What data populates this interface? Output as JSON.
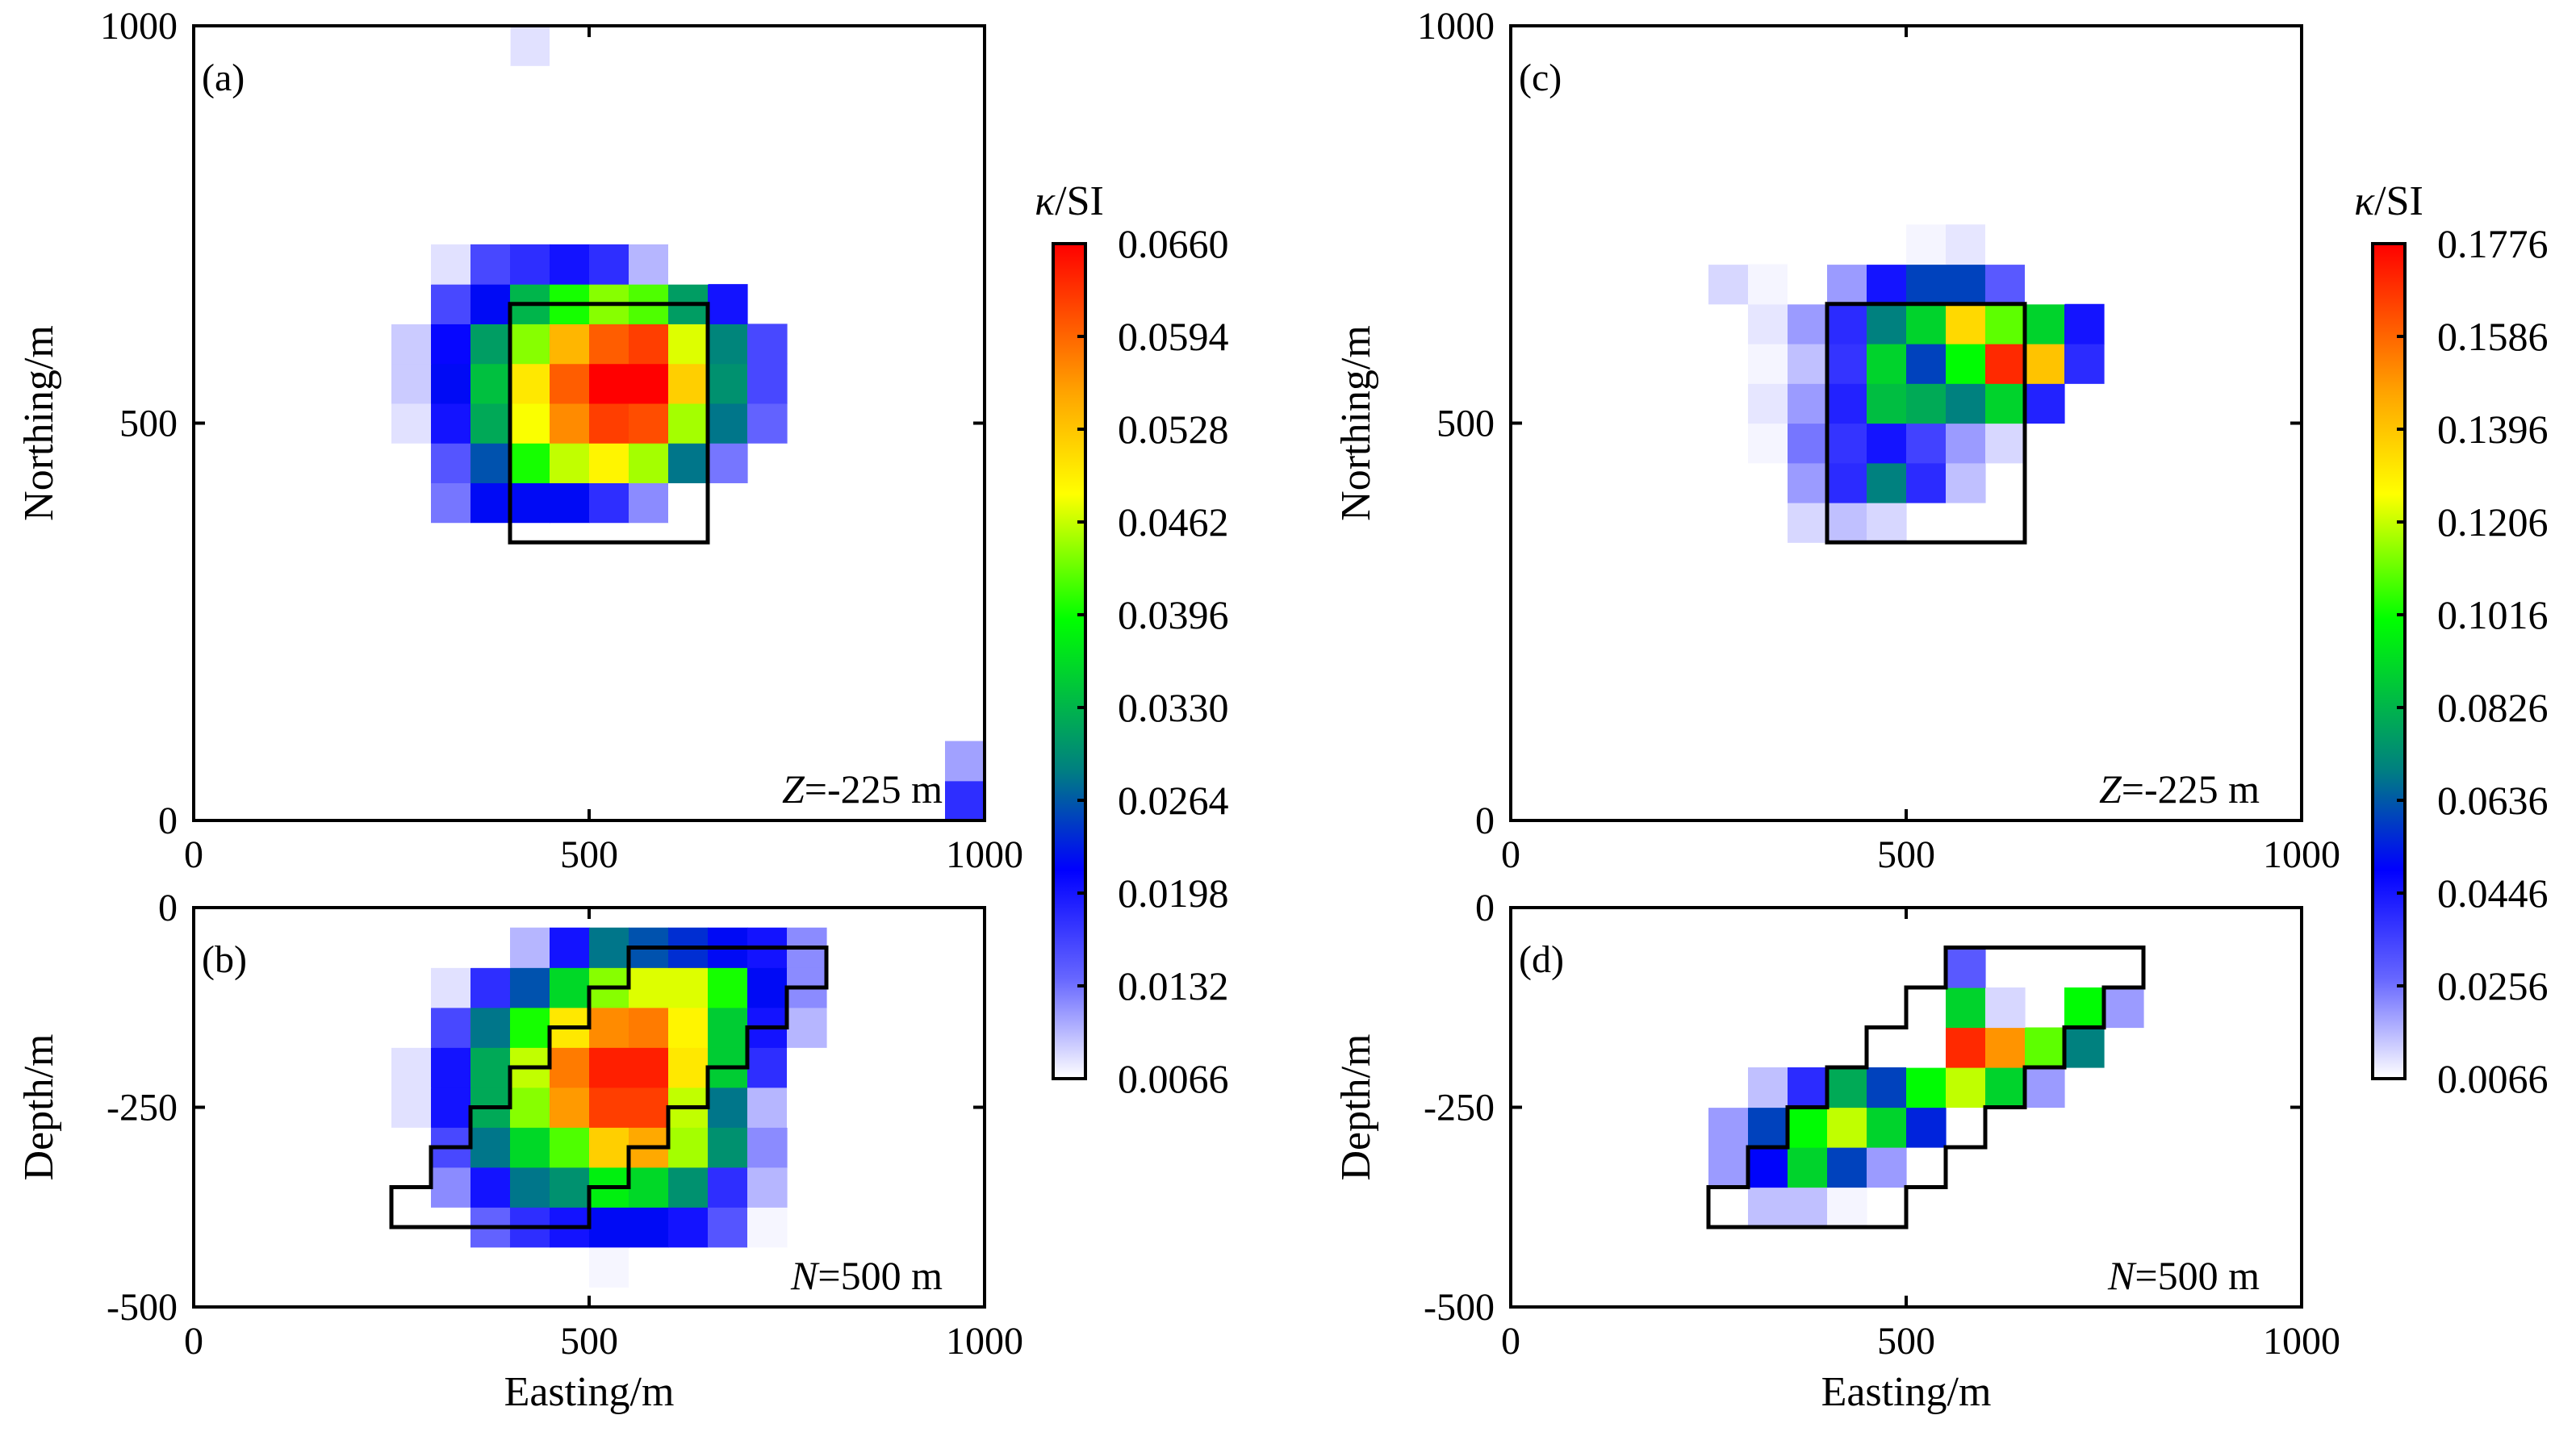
{
  "colors": {
    "colormap": [
      "#ffffff",
      "#6666ff",
      "#0000ff",
      "#008080",
      "#00ff00",
      "#ffff00",
      "#ffa500",
      "#ff0000"
    ],
    "colormap_stops": [
      0,
      0.12,
      0.25,
      0.37,
      0.55,
      0.7,
      0.82,
      1.0
    ],
    "outline": "#000000"
  },
  "chart_data": [
    {
      "id": "a",
      "type": "heatmap",
      "panel_label": "(a)",
      "note": "Z=-225 m",
      "note_italic": "Z",
      "note_rest": "=-225 m",
      "xlabel": "",
      "ylabel": "Northing/m",
      "xlim": [
        0,
        1000
      ],
      "ylim": [
        0,
        1000
      ],
      "xticks": [
        "0",
        "500",
        "1000"
      ],
      "yticks": [
        "0",
        "500",
        "1000"
      ],
      "x0": 250,
      "y0": 375,
      "dx": 50,
      "dy": 50,
      "value_range": [
        0.0066,
        0.066
      ],
      "grid": [
        [
          0.003,
          0.013,
          0.022,
          0.022,
          0.022,
          0.018,
          0.012,
          0.003
        ],
        [
          0.005,
          0.015,
          0.026,
          0.04,
          0.046,
          0.049,
          0.045,
          0.028,
          0.013
        ],
        [
          0.008,
          0.02,
          0.032,
          0.048,
          0.057,
          0.062,
          0.061,
          0.045,
          0.028,
          0.014
        ],
        [
          0.009,
          0.022,
          0.034,
          0.05,
          0.06,
          0.066,
          0.066,
          0.052,
          0.03,
          0.016
        ],
        [
          0.009,
          0.021,
          0.031,
          0.044,
          0.054,
          0.06,
          0.062,
          0.047,
          0.029,
          0.016
        ],
        [
          0.006,
          0.016,
          0.022,
          0.033,
          0.04,
          0.044,
          0.042,
          0.031,
          0.02
        ],
        [
          0.002,
          0.008,
          0.016,
          0.018,
          0.02,
          0.018,
          0.01,
          0.004
        ]
      ],
      "outline": [
        [
          400,
          350
        ],
        [
          650,
          350
        ],
        [
          650,
          650
        ],
        [
          400,
          650
        ]
      ],
      "extra_cells": [
        {
          "x": 950,
          "y": 0,
          "value": 0.018
        },
        {
          "x": 950,
          "y": 50,
          "value": 0.011
        },
        {
          "x": 400,
          "y": 950,
          "value": 0.008
        },
        {
          "x": 350,
          "y": 950,
          "value": 0.004
        },
        {
          "x": 450,
          "y": 950,
          "value": 0.004
        }
      ]
    },
    {
      "id": "b",
      "type": "heatmap",
      "panel_label": "(b)",
      "note": "N=500 m",
      "note_italic": "N",
      "note_rest": "=500 m",
      "xlabel": "Easting/m",
      "ylabel": "Depth/m",
      "xlim": [
        0,
        1000
      ],
      "ylim": [
        -500,
        0
      ],
      "xticks": [
        "0",
        "500",
        "1000"
      ],
      "yticks": [
        "-500",
        "-250",
        "0"
      ],
      "x0": 250,
      "y0": -475,
      "dx": 50,
      "dy": 50,
      "value_range": [
        0.0066,
        0.066
      ],
      "grid": [
        [
          0.001,
          0.001,
          0.003,
          0.004,
          0.006,
          0.007,
          0.006,
          0.004,
          0.003,
          0.001
        ],
        [
          0.002,
          0.006,
          0.014,
          0.018,
          0.02,
          0.022,
          0.022,
          0.02,
          0.015,
          0.007
        ],
        [
          0.004,
          0.012,
          0.02,
          0.028,
          0.03,
          0.038,
          0.036,
          0.03,
          0.018,
          0.01
        ],
        [
          0.006,
          0.016,
          0.028,
          0.036,
          0.042,
          0.052,
          0.055,
          0.045,
          0.03,
          0.012
        ],
        [
          0.008,
          0.02,
          0.032,
          0.044,
          0.056,
          0.062,
          0.062,
          0.046,
          0.028,
          0.01,
          0.006
        ],
        [
          0.008,
          0.02,
          0.032,
          0.046,
          0.058,
          0.064,
          0.064,
          0.05,
          0.035,
          0.018,
          0.006
        ],
        [
          0.004,
          0.016,
          0.028,
          0.04,
          0.05,
          0.057,
          0.058,
          0.049,
          0.035,
          0.02,
          0.01
        ],
        [
          0.002,
          0.008,
          0.018,
          0.026,
          0.036,
          0.044,
          0.047,
          0.047,
          0.04,
          0.022,
          0.012
        ],
        [
          0.0,
          0.002,
          0.006,
          0.01,
          0.02,
          0.028,
          0.026,
          0.024,
          0.022,
          0.02,
          0.012
        ]
      ],
      "outline": [
        [
          250,
          -400
        ],
        [
          500,
          -400
        ],
        [
          500,
          -350
        ],
        [
          550,
          -350
        ],
        [
          550,
          -300
        ],
        [
          600,
          -300
        ],
        [
          600,
          -250
        ],
        [
          650,
          -250
        ],
        [
          650,
          -200
        ],
        [
          700,
          -200
        ],
        [
          700,
          -150
        ],
        [
          750,
          -150
        ],
        [
          750,
          -100
        ],
        [
          800,
          -100
        ],
        [
          800,
          -50
        ],
        [
          550,
          -50
        ],
        [
          550,
          -100
        ],
        [
          500,
          -100
        ],
        [
          500,
          -150
        ],
        [
          450,
          -150
        ],
        [
          450,
          -200
        ],
        [
          400,
          -200
        ],
        [
          400,
          -250
        ],
        [
          350,
          -250
        ],
        [
          350,
          -300
        ],
        [
          300,
          -300
        ],
        [
          300,
          -350
        ],
        [
          250,
          -350
        ]
      ],
      "extra_cells": []
    },
    {
      "id": "c",
      "type": "heatmap",
      "panel_label": "(c)",
      "note": "Z=-225 m",
      "note_italic": "Z",
      "note_rest": "=-225 m",
      "xlabel": "",
      "ylabel": "Northing/m",
      "xlim": [
        0,
        1000
      ],
      "ylim": [
        0,
        1000
      ],
      "xticks": [
        "0",
        "500",
        "1000"
      ],
      "yticks": [
        "0",
        "500",
        "1000"
      ],
      "x0": 200,
      "y0": 350,
      "dx": 50,
      "dy": 50,
      "value_range": [
        0.0066,
        0.1776
      ],
      "grid": [
        [
          0.0,
          0.0,
          0.0,
          0.012,
          0.015,
          0.012
        ],
        [
          0.0,
          0.0,
          0.005,
          0.02,
          0.04,
          0.07,
          0.04,
          0.015
        ],
        [
          0.0,
          0.002,
          0.008,
          0.025,
          0.038,
          0.045,
          0.035,
          0.02,
          0.012
        ],
        [
          0.0,
          0.003,
          0.01,
          0.02,
          0.042,
          0.085,
          0.08,
          0.07,
          0.09,
          0.042
        ],
        [
          0.0,
          0.002,
          0.008,
          0.015,
          0.038,
          0.09,
          0.06,
          0.1,
          0.17,
          0.14,
          0.04
        ],
        [
          0.002,
          0.005,
          0.01,
          0.02,
          0.04,
          0.07,
          0.09,
          0.135,
          0.11,
          0.09,
          0.045
        ],
        [
          0.003,
          0.012,
          0.008,
          0.006,
          0.02,
          0.045,
          0.06,
          0.06,
          0.03,
          0.004
        ],
        [
          0.0,
          0.002,
          0.0,
          0.0,
          0.002,
          0.005,
          0.008,
          0.01,
          0.004
        ]
      ],
      "outline": [
        [
          400,
          350
        ],
        [
          650,
          350
        ],
        [
          650,
          650
        ],
        [
          400,
          650
        ]
      ],
      "extra_cells": []
    },
    {
      "id": "d",
      "type": "heatmap",
      "panel_label": "(d)",
      "note": "N=500 m",
      "note_italic": "N",
      "note_rest": "=500 m",
      "xlabel": "Easting/m",
      "ylabel": "Depth/m",
      "xlim": [
        0,
        1000
      ],
      "ylim": [
        -500,
        0
      ],
      "xticks": [
        "0",
        "500",
        "1000"
      ],
      "yticks": [
        "-500",
        "-250",
        "0"
      ],
      "x0": 250,
      "y0": -400,
      "dx": 50,
      "dy": 50,
      "value_range": [
        0.0066,
        0.1776
      ],
      "grid": [
        [
          0.0,
          0.015,
          0.015,
          0.008,
          0.0
        ],
        [
          0.02,
          0.05,
          0.09,
          0.06,
          0.02
        ],
        [
          0.02,
          0.06,
          0.1,
          0.12,
          0.09,
          0.055,
          0.0
        ],
        [
          0.005,
          0.015,
          0.04,
          0.08,
          0.06,
          0.1,
          0.12,
          0.09,
          0.02
        ],
        [
          0.0,
          0.0,
          0.0,
          0.0,
          0.0,
          0.006,
          0.17,
          0.15,
          0.11,
          0.07
        ],
        [
          0.0,
          0.0,
          0.0,
          0.0,
          0.0,
          0.0,
          0.09,
          0.012,
          0.0,
          0.1,
          0.02
        ],
        [
          0.0,
          0.0,
          0.0,
          0.0,
          0.0,
          0.0,
          0.03,
          0.0,
          0.0,
          0.0,
          0.0
        ]
      ],
      "outline": [
        [
          250,
          -400
        ],
        [
          500,
          -400
        ],
        [
          500,
          -350
        ],
        [
          550,
          -350
        ],
        [
          550,
          -300
        ],
        [
          600,
          -300
        ],
        [
          600,
          -250
        ],
        [
          650,
          -250
        ],
        [
          650,
          -200
        ],
        [
          700,
          -200
        ],
        [
          700,
          -150
        ],
        [
          750,
          -150
        ],
        [
          750,
          -100
        ],
        [
          800,
          -100
        ],
        [
          800,
          -50
        ],
        [
          550,
          -50
        ],
        [
          550,
          -100
        ],
        [
          500,
          -100
        ],
        [
          500,
          -150
        ],
        [
          450,
          -150
        ],
        [
          450,
          -200
        ],
        [
          400,
          -200
        ],
        [
          400,
          -250
        ],
        [
          350,
          -250
        ],
        [
          350,
          -300
        ],
        [
          300,
          -300
        ],
        [
          300,
          -350
        ],
        [
          250,
          -350
        ]
      ],
      "extra_cells": []
    }
  ],
  "colorbars": [
    {
      "id": "left",
      "title": "κ/SI",
      "title_italic": "κ",
      "title_rest": "/SI",
      "values": [
        "0.0660",
        "0.0594",
        "0.0528",
        "0.0462",
        "0.0396",
        "0.0330",
        "0.0264",
        "0.0198",
        "0.0132",
        "0.0066"
      ]
    },
    {
      "id": "right",
      "title": "κ/SI",
      "title_italic": "κ",
      "title_rest": "/SI",
      "values": [
        "0.1776",
        "0.1586",
        "0.1396",
        "0.1206",
        "0.1016",
        "0.0826",
        "0.0636",
        "0.0446",
        "0.0256",
        "0.0066"
      ]
    }
  ]
}
